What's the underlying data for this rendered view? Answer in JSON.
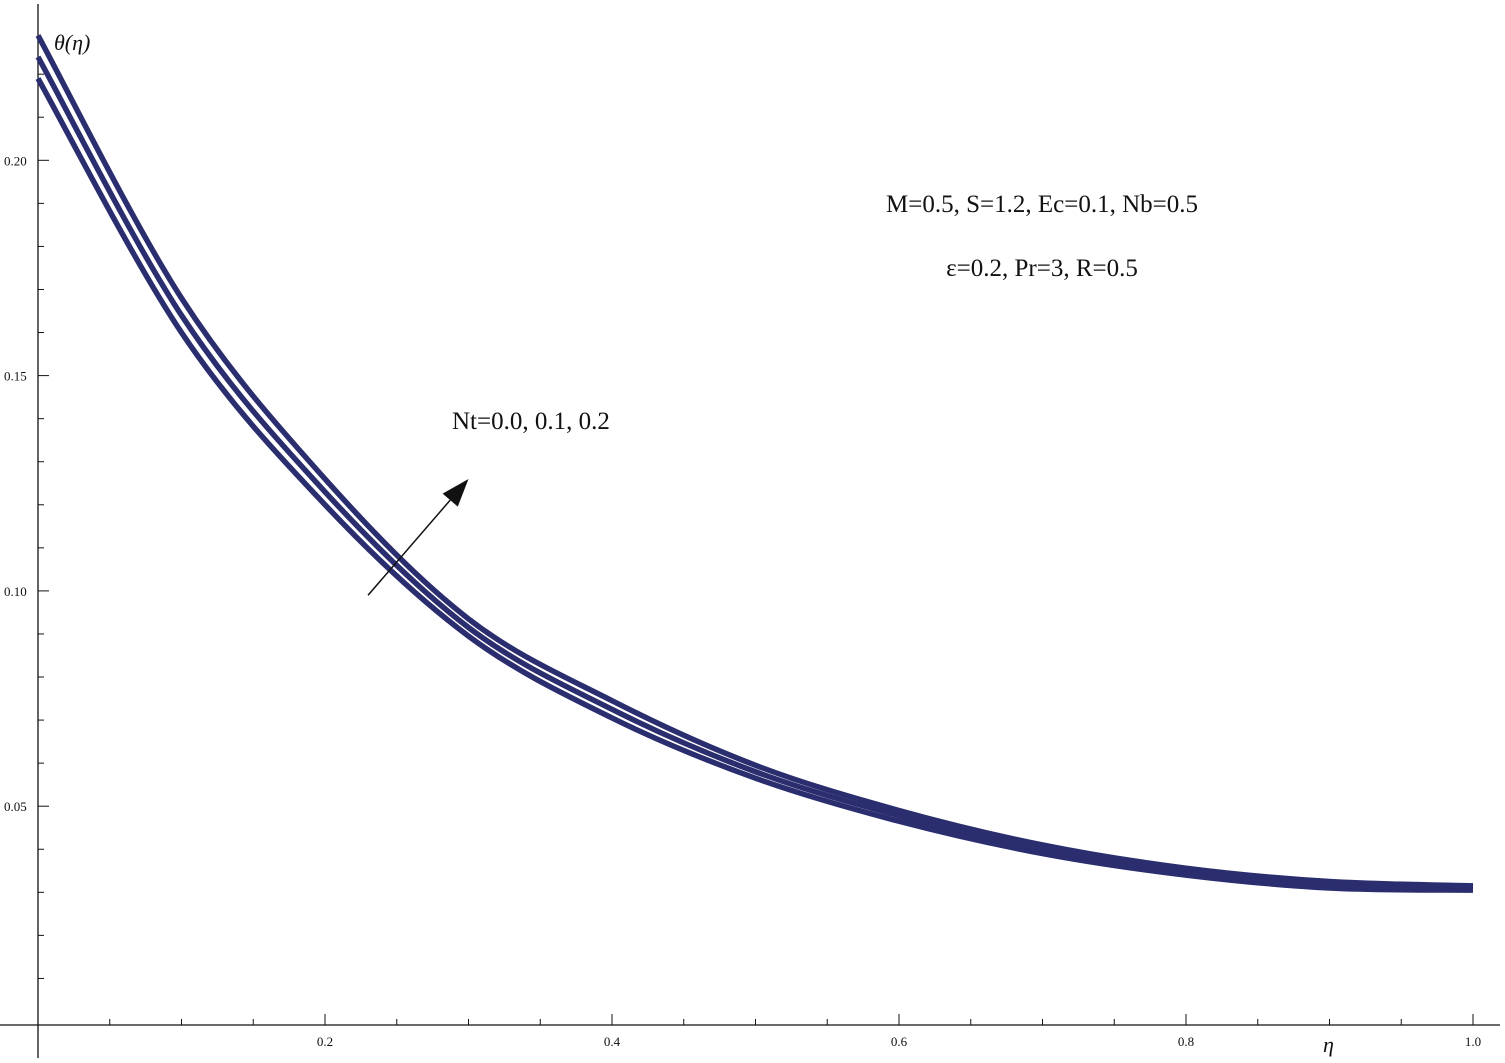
{
  "chart_data": {
    "type": "line",
    "title": "",
    "xlabel": "η",
    "ylabel": "θ(η)",
    "xlim": [
      0,
      1.0
    ],
    "ylim": [
      0,
      0.237
    ],
    "x_ticks": [
      "0.2",
      "0.4",
      "0.6",
      "0.8",
      "1.0"
    ],
    "y_ticks": [
      "0.05",
      "0.10",
      "0.15",
      "0.20"
    ],
    "x": [
      0.0,
      0.1,
      0.2,
      0.3,
      0.4,
      0.5,
      0.6,
      0.7,
      0.8,
      0.9,
      1.0
    ],
    "series": [
      {
        "values": [
          0.219,
          0.16,
          0.12,
          0.0895,
          0.0705,
          0.0565,
          0.0465,
          0.039,
          0.034,
          0.031,
          0.0305
        ]
      },
      {
        "values": [
          0.224,
          0.164,
          0.123,
          0.0915,
          0.0725,
          0.058,
          0.0478,
          0.04,
          0.0348,
          0.0318,
          0.031
        ]
      },
      {
        "values": [
          0.229,
          0.168,
          0.126,
          0.0935,
          0.0745,
          0.0595,
          0.049,
          0.041,
          0.0356,
          0.0325,
          0.0315
        ]
      }
    ],
    "grid": false,
    "line_color": "#2a2d6e",
    "annotations": {
      "params_line1": "M=0.5, S=1.2, Ec=0.1, Nb=0.5",
      "params_line2": "ε=0.2, Pr=3, R=0.5",
      "arrow_label": "Nt=0.0, 0.1, 0.2",
      "arrow_from": [
        0.23,
        0.099
      ],
      "arrow_to": [
        0.3,
        0.126
      ]
    }
  }
}
